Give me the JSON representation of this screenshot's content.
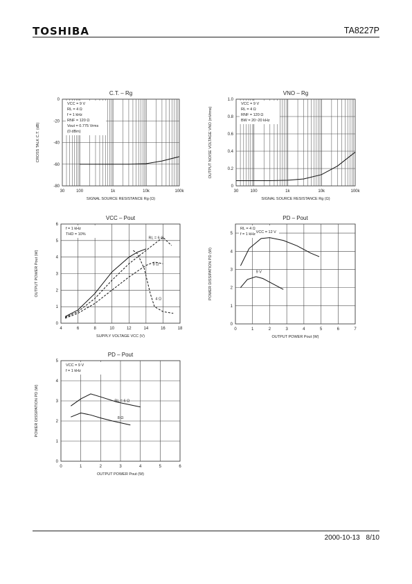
{
  "header": {
    "brand": "TOSHIBA",
    "part_number": "TA8227P"
  },
  "footer": {
    "date": "2000-10-13",
    "page": "8/10"
  },
  "chart_data": [
    {
      "id": "ct_rg",
      "type": "line",
      "log_x": true,
      "title": "C.T. – Rg",
      "xlabel": "SIGNAL SOURCE RESISTANCE  Rg  (Ω)",
      "ylabel": "CROSS TALK  C.T.  (dB)",
      "xlim": [
        30,
        100000
      ],
      "ylim": [
        0,
        -80
      ],
      "x_ticks": [
        {
          "v": 30,
          "t": "30"
        },
        {
          "v": 100,
          "t": "100"
        },
        {
          "v": 1000,
          "t": "1k"
        },
        {
          "v": 10000,
          "t": "10k"
        },
        {
          "v": 100000,
          "t": "100k"
        }
      ],
      "y_ticks": [
        {
          "v": 0,
          "t": "0"
        },
        {
          "v": -20,
          "t": "-20"
        },
        {
          "v": -40,
          "t": "-40"
        },
        {
          "v": -60,
          "t": "-60"
        },
        {
          "v": -80,
          "t": "-80"
        }
      ],
      "notes": [
        "VCC = 9 V",
        "RL = 4 Ω",
        "f = 1 kHz",
        "RNF = 120 Ω",
        "Vout = 0.775 Vrms",
        "(0 dBm)"
      ],
      "series": [
        {
          "dashed": false,
          "x": [
            100,
            300,
            1000,
            3000,
            10000,
            30000,
            100000
          ],
          "y": [
            -60,
            -60,
            -60,
            -60,
            -59.5,
            -57,
            -53
          ]
        }
      ]
    },
    {
      "id": "vno_rg",
      "type": "line",
      "log_x": true,
      "title": "VNO – Rg",
      "xlabel": "SIGNAL SOURCE RESISTANCE  Rg  (Ω)",
      "ylabel": "OUTPUT NOISE VOLTAGE  VNO  (mVrms)",
      "xlim": [
        30,
        100000
      ],
      "ylim": [
        0,
        1.0
      ],
      "x_ticks": [
        {
          "v": 30,
          "t": "30"
        },
        {
          "v": 100,
          "t": "100"
        },
        {
          "v": 1000,
          "t": "1k"
        },
        {
          "v": 10000,
          "t": "10k"
        },
        {
          "v": 100000,
          "t": "100k"
        }
      ],
      "y_ticks": [
        {
          "v": 0,
          "t": "0"
        },
        {
          "v": 0.2,
          "t": "0.2"
        },
        {
          "v": 0.4,
          "t": "0.4"
        },
        {
          "v": 0.6,
          "t": "0.6"
        },
        {
          "v": 0.8,
          "t": "0.8"
        },
        {
          "v": 1.0,
          "t": "1.0"
        }
      ],
      "notes": [
        "VCC = 9 V",
        "RL = 4 Ω",
        "RNF = 120 Ω",
        "BW = 20~20 kHz"
      ],
      "series": [
        {
          "dashed": false,
          "x": [
            30,
            100,
            300,
            1000,
            3000,
            10000,
            30000,
            100000
          ],
          "y": [
            0.06,
            0.06,
            0.06,
            0.065,
            0.08,
            0.13,
            0.23,
            0.39
          ]
        }
      ]
    },
    {
      "id": "vcc_pout",
      "type": "line",
      "log_x": false,
      "title": "VCC – Pout",
      "xlabel": "SUPPLY VOLTAGE  VCC  (V)",
      "ylabel": "OUTPUT POWER  Pout  (W)",
      "xlim": [
        4,
        18
      ],
      "ylim": [
        0,
        6
      ],
      "x_ticks": [
        {
          "v": 4,
          "t": "4"
        },
        {
          "v": 6,
          "t": "6"
        },
        {
          "v": 8,
          "t": "8"
        },
        {
          "v": 10,
          "t": "10"
        },
        {
          "v": 12,
          "t": "12"
        },
        {
          "v": 14,
          "t": "14"
        },
        {
          "v": 16,
          "t": "16"
        },
        {
          "v": 18,
          "t": "18"
        }
      ],
      "y_ticks": [
        {
          "v": 0,
          "t": "0"
        },
        {
          "v": 1,
          "t": "1"
        },
        {
          "v": 2,
          "t": "2"
        },
        {
          "v": 3,
          "t": "3"
        },
        {
          "v": 4,
          "t": "4"
        },
        {
          "v": 5,
          "t": "5"
        },
        {
          "v": 6,
          "t": "6"
        }
      ],
      "notes": [
        "f = 1 kHz",
        "THD = 10%"
      ],
      "curve_labels": [
        {
          "t": "RL = 6 Ω",
          "x": 14.3,
          "y": 5.1
        },
        {
          "t": "8 Ω",
          "x": 14.8,
          "y": 3.5
        },
        {
          "t": "4 Ω",
          "x": 15.1,
          "y": 1.4
        }
      ],
      "series": [
        {
          "dashed": false,
          "x": [
            4.5,
            6,
            8,
            10,
            12,
            13,
            14
          ],
          "y": [
            0.4,
            0.8,
            1.8,
            3.1,
            4.0,
            4.3,
            4.5
          ]
        },
        {
          "dashed": true,
          "x": [
            4.5,
            6,
            8,
            10,
            12,
            14,
            16,
            17
          ],
          "y": [
            0.35,
            0.7,
            1.5,
            2.6,
            3.6,
            4.4,
            5.2,
            4.7
          ]
        },
        {
          "dashed": true,
          "x": [
            4.5,
            6,
            8,
            10,
            12,
            14,
            15,
            16
          ],
          "y": [
            0.3,
            0.6,
            1.2,
            2.0,
            2.8,
            3.5,
            3.7,
            3.6
          ]
        },
        {
          "dashed": true,
          "x": [
            12.5,
            13,
            13.8,
            14.5,
            15,
            16,
            17.2
          ],
          "y": [
            4.4,
            4.2,
            3.3,
            1.8,
            1.0,
            0.7,
            0.6
          ]
        }
      ]
    },
    {
      "id": "pd_pout_a",
      "type": "line",
      "log_x": false,
      "title": "PD – Pout",
      "xlabel": "OUTPUT POWER  Pout  (W)",
      "ylabel": "POWER DISSIPATION  PD  (W)",
      "xlim": [
        0,
        7
      ],
      "ylim": [
        0,
        5.5
      ],
      "x_ticks": [
        {
          "v": 0,
          "t": "0"
        },
        {
          "v": 1,
          "t": "1"
        },
        {
          "v": 2,
          "t": "2"
        },
        {
          "v": 3,
          "t": "3"
        },
        {
          "v": 4,
          "t": "4"
        },
        {
          "v": 5,
          "t": "5"
        },
        {
          "v": 6,
          "t": "6"
        },
        {
          "v": 7,
          "t": "7"
        }
      ],
      "y_ticks": [
        {
          "v": 0,
          "t": "0"
        },
        {
          "v": 1,
          "t": "1"
        },
        {
          "v": 2,
          "t": "2"
        },
        {
          "v": 3,
          "t": "3"
        },
        {
          "v": 4,
          "t": "4"
        },
        {
          "v": 5,
          "t": "5"
        }
      ],
      "notes": [
        "RL = 4 Ω",
        "f = 1 kHz"
      ],
      "curve_labels": [
        {
          "t": "VCC = 12 V",
          "x": 1.2,
          "y": 5.0
        },
        {
          "t": "9 V",
          "x": 1.2,
          "y": 2.8
        }
      ],
      "series": [
        {
          "dashed": false,
          "x": [
            0.3,
            0.8,
            1.5,
            2.0,
            2.8,
            3.6,
            4.4,
            4.9
          ],
          "y": [
            3.2,
            4.15,
            4.7,
            4.75,
            4.6,
            4.3,
            3.9,
            3.7
          ]
        },
        {
          "dashed": false,
          "x": [
            0.3,
            0.7,
            1.2,
            1.6,
            2.2,
            2.8
          ],
          "y": [
            2.0,
            2.45,
            2.6,
            2.5,
            2.2,
            1.9
          ]
        }
      ]
    },
    {
      "id": "pd_pout_b",
      "type": "line",
      "log_x": false,
      "title": "PD – Pout",
      "xlabel": "OUTPUT POWER  Pout  (W)",
      "ylabel": "POWER DISSIPATION  PD  (W)",
      "xlim": [
        0,
        6
      ],
      "ylim": [
        0,
        5
      ],
      "x_ticks": [
        {
          "v": 0,
          "t": "0"
        },
        {
          "v": 1,
          "t": "1"
        },
        {
          "v": 2,
          "t": "2"
        },
        {
          "v": 3,
          "t": "3"
        },
        {
          "v": 4,
          "t": "4"
        },
        {
          "v": 5,
          "t": "5"
        },
        {
          "v": 6,
          "t": "6"
        }
      ],
      "y_ticks": [
        {
          "v": 0,
          "t": "0"
        },
        {
          "v": 1,
          "t": "1"
        },
        {
          "v": 2,
          "t": "2"
        },
        {
          "v": 3,
          "t": "3"
        },
        {
          "v": 4,
          "t": "4"
        },
        {
          "v": 5,
          "t": "5"
        }
      ],
      "notes": [
        "VCC = 9 V",
        "f = 1 kHz"
      ],
      "curve_labels": [
        {
          "t": "RL = 6 Ω",
          "x": 2.7,
          "y": 2.95
        },
        {
          "t": "8 Ω",
          "x": 2.85,
          "y": 2.1
        }
      ],
      "series": [
        {
          "dashed": false,
          "x": [
            0.5,
            1.0,
            1.5,
            2.0,
            2.8,
            3.5,
            4.0
          ],
          "y": [
            2.75,
            3.1,
            3.35,
            3.2,
            2.95,
            2.8,
            2.7
          ]
        },
        {
          "dashed": false,
          "x": [
            0.5,
            1.0,
            1.5,
            2.0,
            2.6,
            3.5
          ],
          "y": [
            2.2,
            2.4,
            2.3,
            2.15,
            2.0,
            1.8
          ]
        }
      ]
    }
  ]
}
